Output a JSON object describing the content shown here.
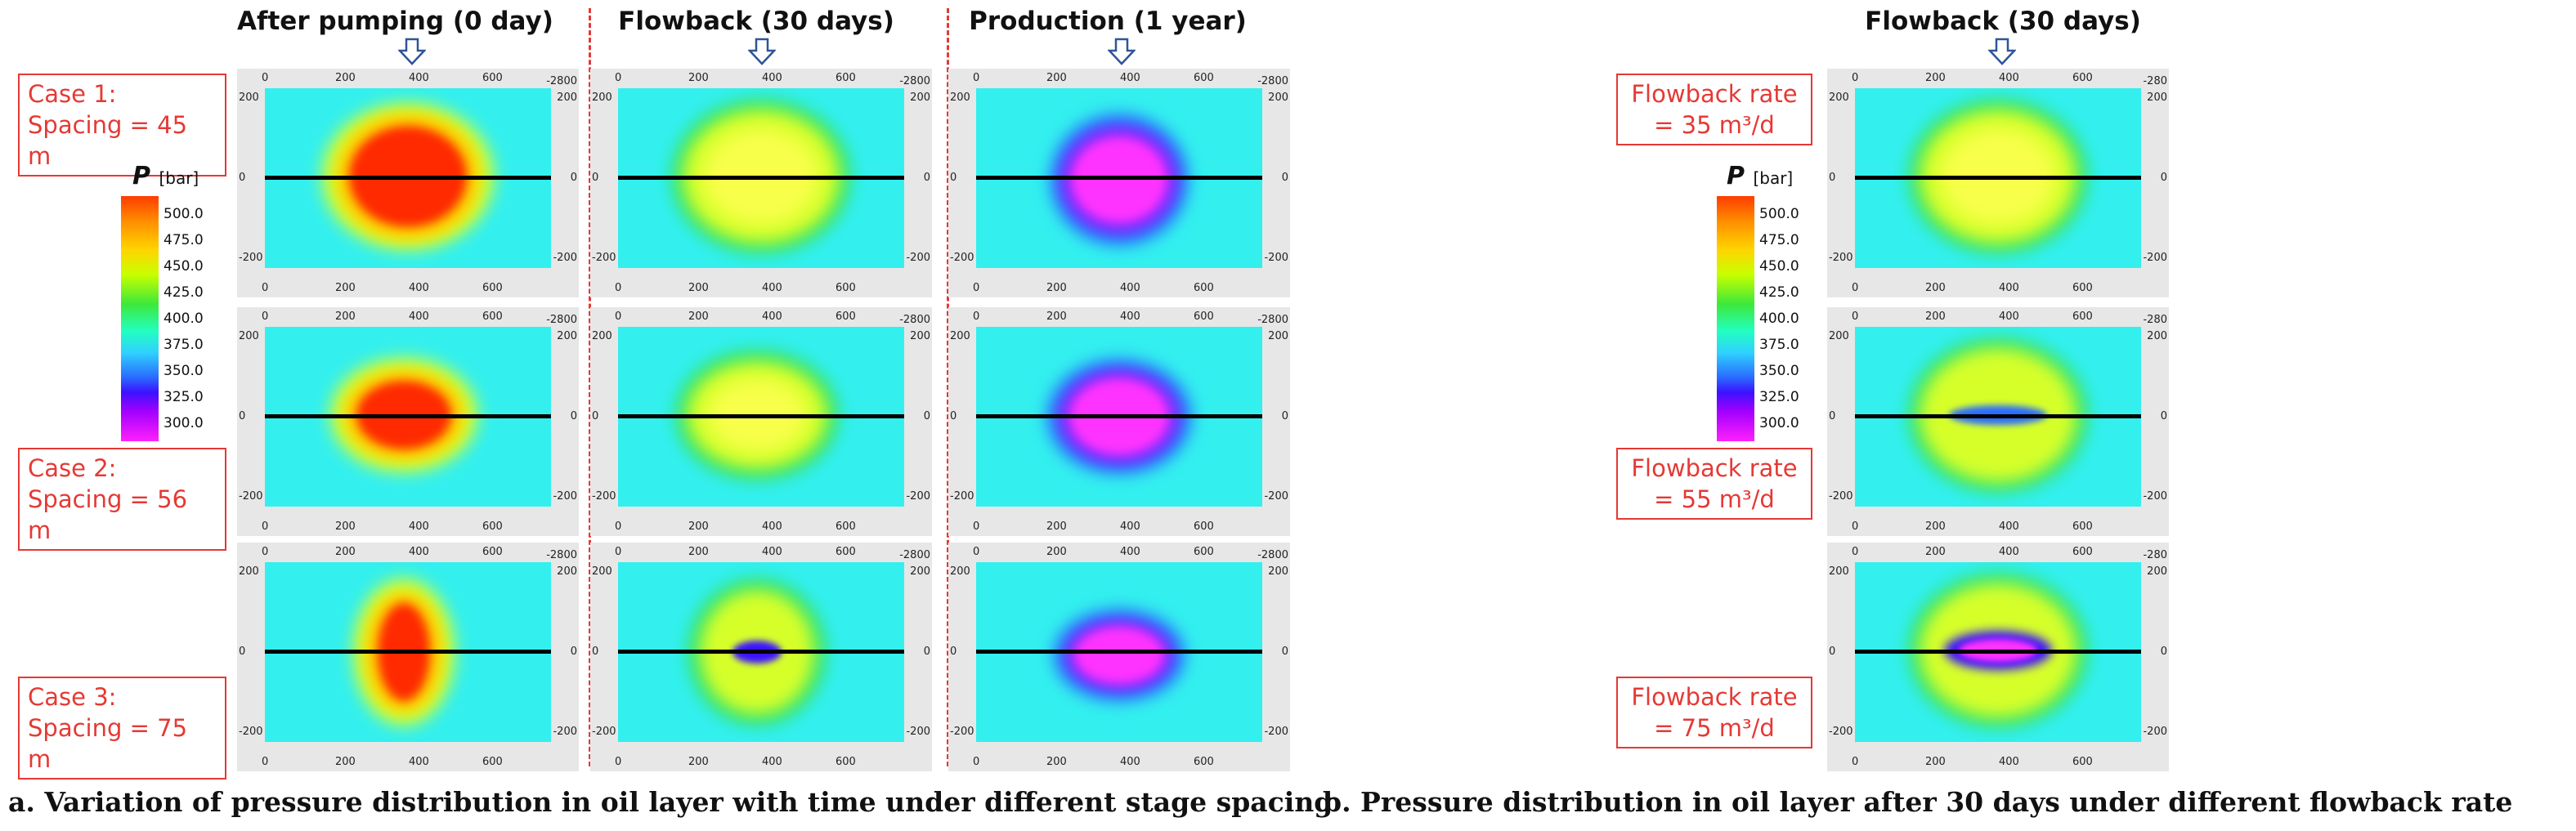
{
  "figure_a": {
    "columns": [
      "After pumping (0 day)",
      "Flowback (30 days)",
      "Production (1 year)"
    ],
    "cases": [
      {
        "line1": "Case 1:",
        "line2": "Spacing = 45 m"
      },
      {
        "line1": "Case 2:",
        "line2": "Spacing = 56 m"
      },
      {
        "line1": "Case 3:",
        "line2": "Spacing = 75 m"
      }
    ],
    "caption": "a. Variation of pressure distribution in oil layer with time under different stage spacing"
  },
  "figure_b": {
    "column": "Flowback (30 days)",
    "rates": [
      {
        "line1": "Flowback rate",
        "line2": "= 35 m³/d"
      },
      {
        "line1": "Flowback rate",
        "line2": "= 55 m³/d"
      },
      {
        "line1": "Flowback rate",
        "line2": "= 75 m³/d"
      }
    ],
    "caption": "b. Pressure distribution in oil layer after 30 days under different flowback rate"
  },
  "legend": {
    "symbol": "P",
    "unit": "[bar]",
    "ticks": [
      "500.0",
      "475.0",
      "450.0",
      "425.0",
      "400.0",
      "375.0",
      "350.0",
      "325.0",
      "300.0"
    ]
  },
  "axes": {
    "x_ticks": [
      "0",
      "200",
      "400",
      "600"
    ],
    "y_ticks": [
      "200",
      "0",
      "-200"
    ],
    "frame_label": "-2800",
    "frame_label_b": "-280"
  },
  "colors": {
    "background_field": "#33f0ef",
    "high_pressure": "#ff2a00",
    "mid_pressure": "#d6ff2a",
    "low_pressure": "#ff33ff",
    "separator": "#e53935"
  }
}
